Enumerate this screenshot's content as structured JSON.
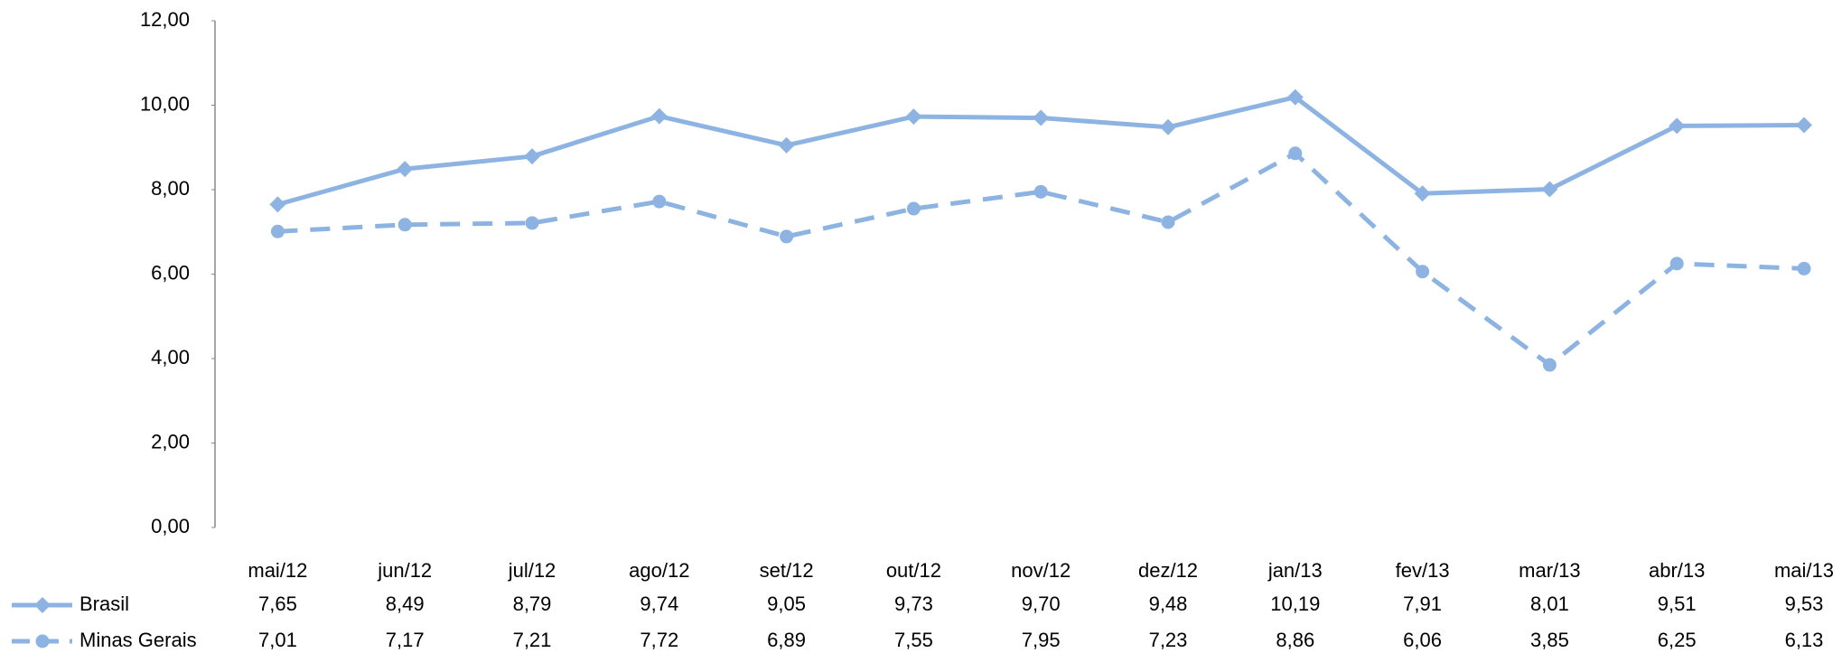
{
  "chart_data": {
    "type": "line",
    "categories": [
      "mai/12",
      "jun/12",
      "jul/12",
      "ago/12",
      "set/12",
      "out/12",
      "nov/12",
      "dez/12",
      "jan/13",
      "fev/13",
      "mar/13",
      "abr/13",
      "mai/13"
    ],
    "series": [
      {
        "name": "Brasil",
        "color": "#8db3e2",
        "marker": "diamond",
        "line": "solid",
        "values": [
          7.65,
          8.49,
          8.79,
          9.74,
          9.05,
          9.73,
          9.7,
          9.48,
          10.19,
          7.91,
          8.01,
          9.51,
          9.53
        ],
        "value_labels": [
          "7,65",
          "8,49",
          "8,79",
          "9,74",
          "9,05",
          "9,73",
          "9,70",
          "9,48",
          "10,19",
          "7,91",
          "8,01",
          "9,51",
          "9,53"
        ]
      },
      {
        "name": "Minas Gerais",
        "color": "#8db3e2",
        "marker": "circle",
        "line": "dashed",
        "values": [
          7.01,
          7.17,
          7.21,
          7.72,
          6.89,
          7.55,
          7.95,
          7.23,
          8.86,
          6.06,
          3.85,
          6.25,
          6.13
        ],
        "value_labels": [
          "7,01",
          "7,17",
          "7,21",
          "7,72",
          "6,89",
          "7,55",
          "7,95",
          "7,23",
          "8,86",
          "6,06",
          "3,85",
          "6,25",
          "6,13"
        ]
      }
    ],
    "ylim": [
      0,
      12
    ],
    "yticks": [
      {
        "value": 0,
        "label": "0,00"
      },
      {
        "value": 2,
        "label": "2,00"
      },
      {
        "value": 4,
        "label": "4,00"
      },
      {
        "value": 6,
        "label": "6,00"
      },
      {
        "value": 8,
        "label": "8,00"
      },
      {
        "value": 10,
        "label": "10,00"
      },
      {
        "value": 12,
        "label": "12,00"
      }
    ],
    "grid": false
  }
}
